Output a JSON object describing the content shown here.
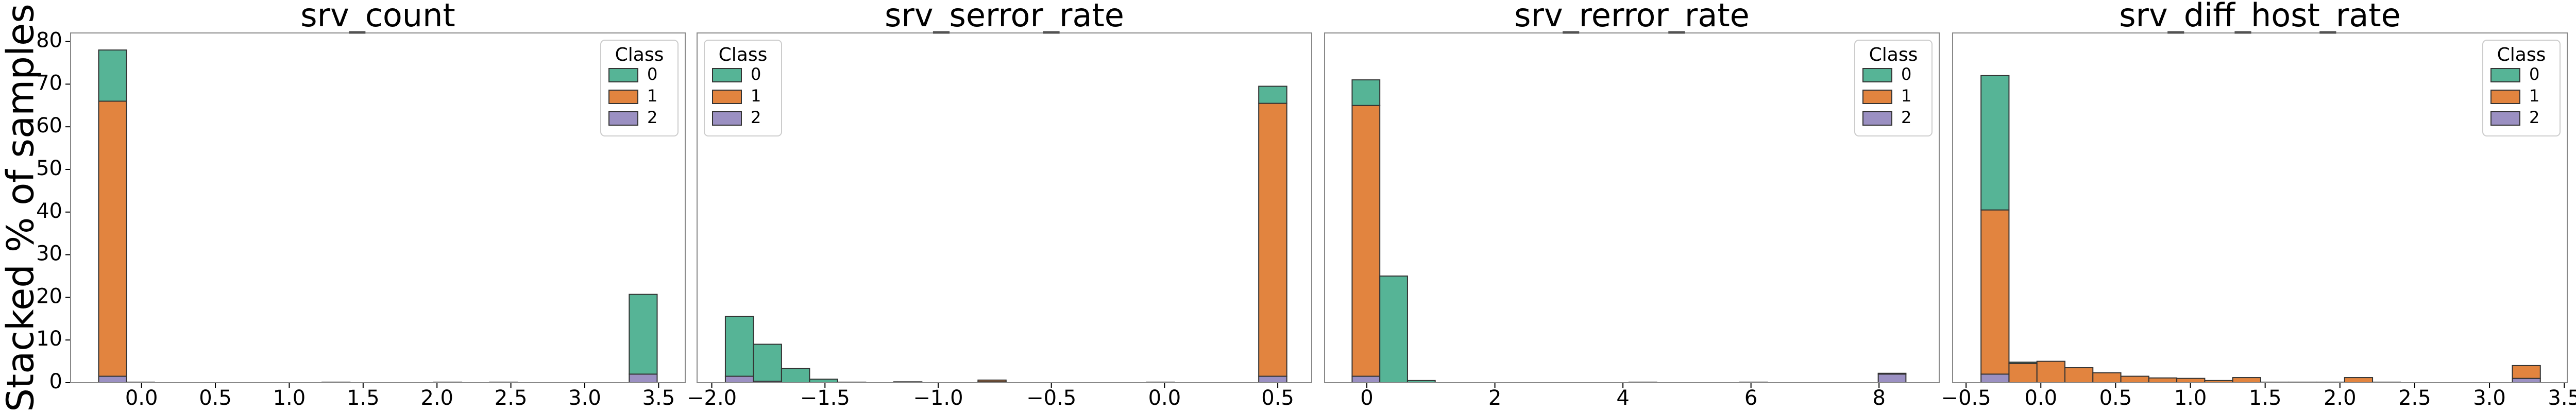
{
  "chart_data": [
    {
      "type": "histogram",
      "title": "srv_count",
      "ylabel": "Stacked % of samples",
      "bins": [
        -0.29,
        -0.101,
        0.088,
        0.277,
        0.466,
        0.655,
        0.844,
        1.033,
        1.222,
        1.411,
        1.6,
        1.789,
        1.978,
        2.167,
        2.356,
        2.545,
        2.734,
        2.923,
        3.112,
        3.301,
        3.49
      ],
      "series": [
        {
          "name": "0",
          "color": "#56b496",
          "values": [
            12,
            0,
            0,
            0,
            0,
            0,
            0,
            0,
            0,
            0,
            0,
            0,
            0,
            0,
            0,
            0,
            0,
            0,
            0,
            18.7
          ]
        },
        {
          "name": "1",
          "color": "#e2843f",
          "values": [
            64.5,
            0.1,
            0,
            0,
            0,
            0,
            0,
            0,
            0.1,
            0,
            0,
            0,
            0.1,
            0,
            0.1,
            0,
            0,
            0,
            0,
            0
          ]
        },
        {
          "name": "2",
          "color": "#9b90c2",
          "values": [
            1.5,
            0,
            0,
            0,
            0,
            0,
            0,
            0,
            0,
            0,
            0,
            0,
            0,
            0,
            0,
            0,
            0,
            0,
            0,
            2
          ]
        }
      ],
      "xlim": [
        -0.48,
        3.68
      ],
      "xticks": [
        {
          "value": 0,
          "label": "0.0"
        },
        0.5,
        {
          "value": 1,
          "label": "1.0"
        },
        1.5,
        {
          "value": 2,
          "label": "2.0"
        },
        2.5,
        {
          "value": 3,
          "label": "3.0"
        },
        3.5
      ],
      "ylim": [
        0,
        82
      ],
      "yticks": [
        0,
        10,
        20,
        30,
        40,
        50,
        60,
        70,
        80
      ],
      "legend_title": "Class",
      "legend_loc": "upper right"
    },
    {
      "type": "histogram",
      "title": "srv_serror_rate",
      "bins": [
        -1.94,
        -1.816,
        -1.692,
        -1.568,
        -1.444,
        -1.32,
        -1.196,
        -1.072,
        -0.948,
        -0.824,
        -0.7,
        -0.576,
        -0.452,
        -0.328,
        -0.204,
        -0.08,
        0.044,
        0.168,
        0.292,
        0.416,
        0.54
      ],
      "series": [
        {
          "name": "0",
          "color": "#56b496",
          "values": [
            14,
            8.7,
            3.3,
            0.8,
            0,
            0,
            0.2,
            0,
            0,
            0,
            0,
            0,
            0,
            0,
            0,
            0,
            0,
            0,
            0,
            4
          ]
        },
        {
          "name": "1",
          "color": "#e2843f",
          "values": [
            0,
            0,
            0,
            0,
            0.1,
            0,
            0,
            0,
            0,
            0.4,
            0,
            0,
            0,
            0,
            0,
            0.1,
            0,
            0,
            0,
            64
          ]
        },
        {
          "name": "2",
          "color": "#9b90c2",
          "values": [
            1.5,
            0.3,
            0,
            0,
            0,
            0,
            0,
            0,
            0,
            0.2,
            0,
            0,
            0,
            0,
            0,
            0,
            0,
            0,
            0,
            1.5
          ]
        }
      ],
      "xlim": [
        -2.065,
        0.65
      ],
      "xticks": [
        {
          "value": -2,
          "label": "−2.0"
        },
        {
          "value": -1.5,
          "label": "−1.5"
        },
        {
          "value": -1,
          "label": "−1.0"
        },
        {
          "value": -0.5,
          "label": "−0.5"
        },
        {
          "value": 0,
          "label": "0.0"
        },
        0.5
      ],
      "ylim": [
        0,
        82
      ],
      "legend_title": "Class",
      "legend_loc": "upper left"
    },
    {
      "type": "histogram",
      "title": "srv_rerror_rate",
      "bins": [
        -0.23,
        0.2025,
        0.635,
        1.0675,
        1.5,
        1.9325,
        2.365,
        2.7975,
        3.23,
        3.6625,
        4.095,
        4.5275,
        4.96,
        5.3925,
        5.825,
        6.2575,
        6.69,
        7.1225,
        7.555,
        7.9875,
        8.42
      ],
      "series": [
        {
          "name": "0",
          "color": "#56b496",
          "values": [
            6,
            25,
            0.5,
            0,
            0,
            0,
            0,
            0,
            0,
            0,
            0,
            0,
            0,
            0,
            0,
            0,
            0,
            0,
            0,
            0
          ]
        },
        {
          "name": "1",
          "color": "#e2843f",
          "values": [
            63.5,
            0,
            0,
            0,
            0,
            0,
            0,
            0,
            0,
            0,
            0.1,
            0,
            0,
            0,
            0.1,
            0,
            0,
            0,
            0,
            0.2
          ]
        },
        {
          "name": "2",
          "color": "#9b90c2",
          "values": [
            1.5,
            0,
            0,
            0,
            0,
            0,
            0,
            0,
            0,
            0,
            0,
            0,
            0,
            0,
            0,
            0,
            0,
            0,
            0,
            2
          ]
        }
      ],
      "xlim": [
        -0.66,
        8.94
      ],
      "xticks": [
        0,
        2,
        4,
        6,
        8
      ],
      "ylim": [
        0,
        82
      ],
      "legend_title": "Class",
      "legend_loc": "upper right"
    },
    {
      "type": "histogram",
      "title": "srv_diff_host_rate",
      "bins": [
        -0.4,
        -0.213,
        -0.026,
        0.161,
        0.348,
        0.535,
        0.722,
        0.909,
        1.096,
        1.283,
        1.47,
        1.657,
        1.844,
        2.031,
        2.218,
        2.405,
        2.592,
        2.779,
        2.966,
        3.153,
        3.34
      ],
      "series": [
        {
          "name": "0",
          "color": "#56b496",
          "values": [
            31.5,
            0.3,
            0,
            0,
            0,
            0,
            0,
            0,
            0,
            0,
            0,
            0,
            0,
            0,
            0,
            0,
            0,
            0,
            0,
            0
          ]
        },
        {
          "name": "1",
          "color": "#e2843f",
          "values": [
            38.5,
            4.5,
            5,
            3.5,
            2.3,
            1.5,
            1.1,
            1,
            0.5,
            1.2,
            0.1,
            0.1,
            0.1,
            1.2,
            0.1,
            0,
            0,
            0,
            0,
            3
          ]
        },
        {
          "name": "2",
          "color": "#9b90c2",
          "values": [
            2,
            0,
            0,
            0,
            0,
            0,
            0,
            0,
            0,
            0,
            0,
            0,
            0,
            0,
            0,
            0,
            0,
            0,
            0,
            1
          ]
        }
      ],
      "xlim": [
        -0.59,
        3.52
      ],
      "xticks": [
        {
          "value": -0.5,
          "label": "−0.5"
        },
        {
          "value": 0,
          "label": "0.0"
        },
        0.5,
        {
          "value": 1,
          "label": "1.0"
        },
        1.5,
        {
          "value": 2,
          "label": "2.0"
        },
        2.5,
        {
          "value": 3,
          "label": "3.0"
        },
        3.5
      ],
      "ylim": [
        0,
        82
      ],
      "legend_title": "Class",
      "legend_loc": "upper right"
    }
  ]
}
